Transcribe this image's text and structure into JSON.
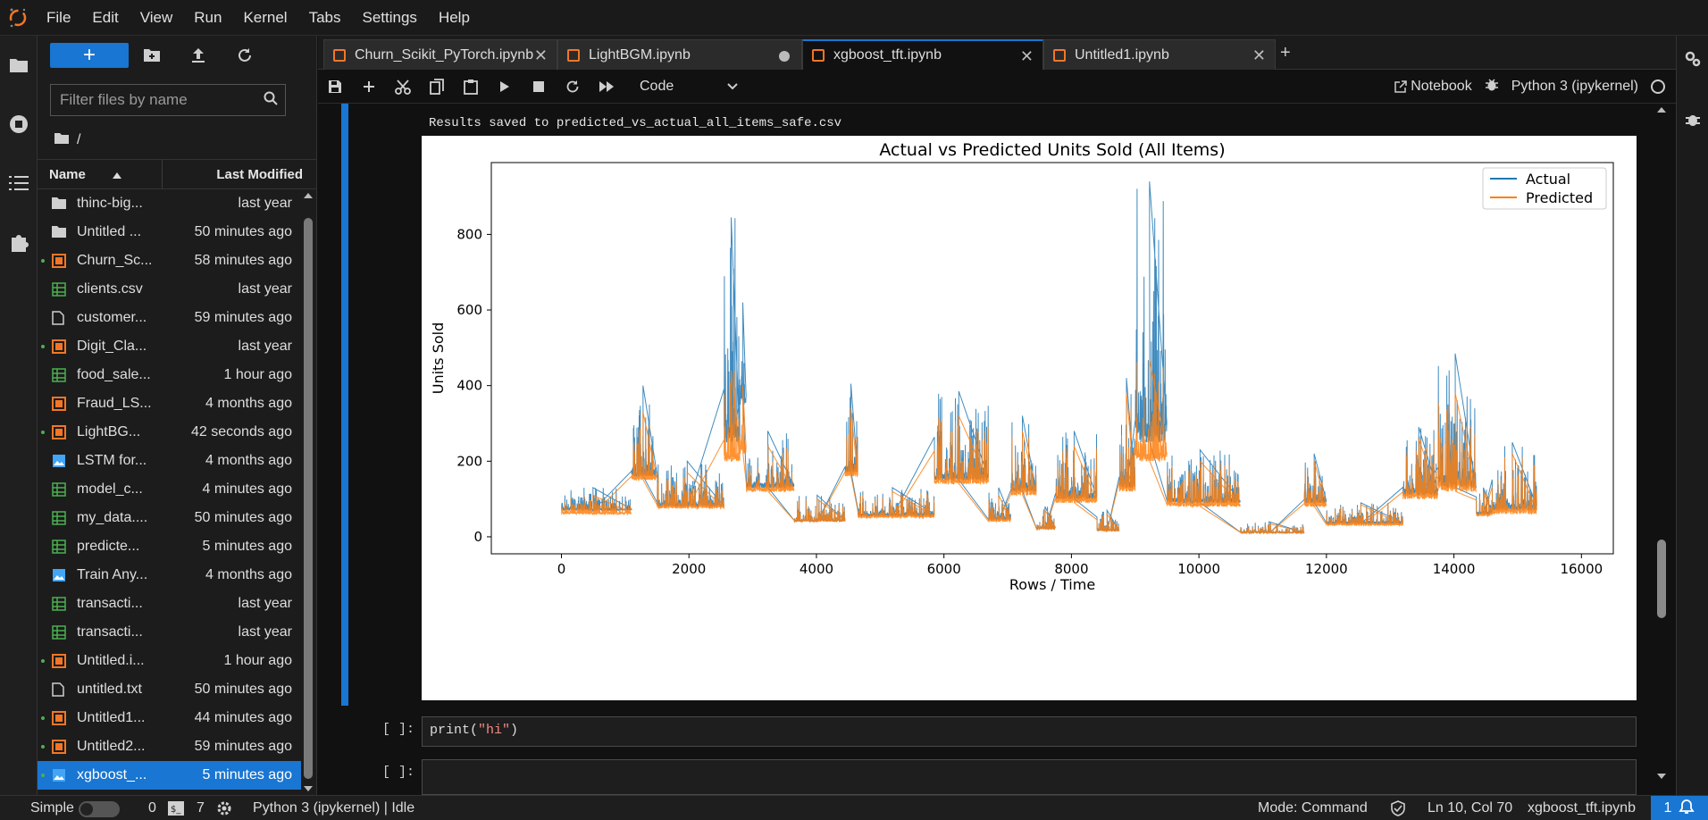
{
  "menubar": {
    "items": [
      "File",
      "Edit",
      "View",
      "Run",
      "Kernel",
      "Tabs",
      "Settings",
      "Help"
    ]
  },
  "filebrowser": {
    "new_label": "+",
    "filter_placeholder": "Filter files by name",
    "breadcrumb": "/",
    "header_name": "Name",
    "header_modified": "Last Modified",
    "files": [
      {
        "name": "thinc-big...",
        "modified": "last year",
        "type": "folder",
        "running": false
      },
      {
        "name": "Untitled ...",
        "modified": "50 minutes ago",
        "type": "folder",
        "running": false
      },
      {
        "name": "Churn_Sc...",
        "modified": "58 minutes ago",
        "type": "notebook",
        "running": true
      },
      {
        "name": "clients.csv",
        "modified": "last year",
        "type": "csv",
        "running": false
      },
      {
        "name": "customer...",
        "modified": "59 minutes ago",
        "type": "file",
        "running": false
      },
      {
        "name": "Digit_Cla...",
        "modified": "last year",
        "type": "notebook",
        "running": true
      },
      {
        "name": "food_sale...",
        "modified": "1 hour ago",
        "type": "csv",
        "running": false
      },
      {
        "name": "Fraud_LS...",
        "modified": "4 months ago",
        "type": "notebook",
        "running": false
      },
      {
        "name": "LightBG...",
        "modified": "42 seconds ago",
        "type": "notebook",
        "running": true
      },
      {
        "name": "LSTM for...",
        "modified": "4 months ago",
        "type": "image",
        "running": false
      },
      {
        "name": "model_c...",
        "modified": "4 minutes ago",
        "type": "csv",
        "running": false
      },
      {
        "name": "my_data....",
        "modified": "50 minutes ago",
        "type": "csv",
        "running": false
      },
      {
        "name": "predicte...",
        "modified": "5 minutes ago",
        "type": "csv",
        "running": false
      },
      {
        "name": "Train Any...",
        "modified": "4 months ago",
        "type": "image",
        "running": false
      },
      {
        "name": "transacti...",
        "modified": "last year",
        "type": "csv",
        "running": false
      },
      {
        "name": "transacti...",
        "modified": "last year",
        "type": "csv",
        "running": false
      },
      {
        "name": "Untitled.i...",
        "modified": "1 hour ago",
        "type": "notebook",
        "running": true
      },
      {
        "name": "untitled.txt",
        "modified": "50 minutes ago",
        "type": "file",
        "running": false
      },
      {
        "name": "Untitled1...",
        "modified": "44 minutes ago",
        "type": "notebook",
        "running": true
      },
      {
        "name": "Untitled2...",
        "modified": "59 minutes ago",
        "type": "notebook",
        "running": true
      },
      {
        "name": "xgboost_...",
        "modified": "5 minutes ago",
        "type": "image",
        "running": true,
        "selected": true
      }
    ]
  },
  "tabs": [
    {
      "label": "Churn_Scikit_PyTorch.ipynb",
      "state": "close"
    },
    {
      "label": "LightBGM.ipynb",
      "state": "dirty"
    },
    {
      "label": "xgboost_tft.ipynb",
      "state": "close",
      "active": true
    },
    {
      "label": "Untitled1.ipynb",
      "state": "close"
    }
  ],
  "toolbar": {
    "cell_type": "Code",
    "notebook_label": "Notebook",
    "kernel_label": "Python 3 (ipykernel)"
  },
  "notebook": {
    "output_text": "Results saved to predicted_vs_actual_all_items_safe.csv",
    "cell2_prompt": "[ ]:",
    "cell2_code_fn": "print(",
    "cell2_code_str": "\"hi\"",
    "cell2_code_end": ")",
    "cell3_prompt": "[ ]:"
  },
  "chart_data": {
    "type": "line",
    "title": "Actual vs Predicted Units Sold (All Items)",
    "xlabel": "Rows / Time",
    "ylabel": "Units Sold",
    "xlim": [
      -1100,
      16500
    ],
    "ylim": [
      -45,
      990
    ],
    "xticks": [
      0,
      2000,
      4000,
      6000,
      8000,
      10000,
      12000,
      14000,
      16000
    ],
    "yticks": [
      0,
      200,
      400,
      600,
      800
    ],
    "legend_position": "top-right",
    "series": [
      {
        "name": "Actual",
        "color": "#1f77b4"
      },
      {
        "name": "Predicted",
        "color": "#ff7f0e"
      }
    ],
    "segments": [
      {
        "x0": 0,
        "x1": 1100,
        "actual": [
          70,
          130
        ],
        "pred": [
          60,
          110
        ]
      },
      {
        "x0": 1100,
        "x1": 1500,
        "actual": [
          160,
          400
        ],
        "pred": [
          150,
          330
        ]
      },
      {
        "x0": 1500,
        "x1": 2550,
        "actual": [
          80,
          200
        ],
        "pred": [
          75,
          170
        ]
      },
      {
        "x0": 2550,
        "x1": 2800,
        "actual": [
          250,
          845
        ],
        "pred": [
          200,
          440
        ]
      },
      {
        "x0": 2800,
        "x1": 2900,
        "actual": [
          350,
          620
        ],
        "pred": [
          220,
          400
        ]
      },
      {
        "x0": 2900,
        "x1": 3650,
        "actual": [
          130,
          280
        ],
        "pred": [
          120,
          240
        ]
      },
      {
        "x0": 3650,
        "x1": 4450,
        "actual": [
          40,
          110
        ],
        "pred": [
          40,
          100
        ]
      },
      {
        "x0": 4450,
        "x1": 4650,
        "actual": [
          170,
          405
        ],
        "pred": [
          160,
          340
        ]
      },
      {
        "x0": 4650,
        "x1": 5850,
        "actual": [
          55,
          130
        ],
        "pred": [
          50,
          120
        ]
      },
      {
        "x0": 5850,
        "x1": 6700,
        "actual": [
          150,
          385
        ],
        "pred": [
          140,
          320
        ]
      },
      {
        "x0": 6700,
        "x1": 7050,
        "actual": [
          45,
          130
        ],
        "pred": [
          40,
          110
        ]
      },
      {
        "x0": 7050,
        "x1": 7450,
        "actual": [
          120,
          320
        ],
        "pred": [
          110,
          280
        ]
      },
      {
        "x0": 7450,
        "x1": 7750,
        "actual": [
          20,
          80
        ],
        "pred": [
          20,
          70
        ]
      },
      {
        "x0": 7750,
        "x1": 8400,
        "actual": [
          100,
          280
        ],
        "pred": [
          90,
          240
        ]
      },
      {
        "x0": 8400,
        "x1": 8750,
        "actual": [
          15,
          70
        ],
        "pred": [
          15,
          60
        ]
      },
      {
        "x0": 8750,
        "x1": 9000,
        "actual": [
          130,
          420
        ],
        "pred": [
          120,
          380
        ]
      },
      {
        "x0": 9000,
        "x1": 9500,
        "actual": [
          250,
          940
        ],
        "pred": [
          200,
          470
        ]
      },
      {
        "x0": 9500,
        "x1": 10650,
        "actual": [
          90,
          230
        ],
        "pred": [
          80,
          200
        ]
      },
      {
        "x0": 10650,
        "x1": 11650,
        "actual": [
          10,
          40
        ],
        "pred": [
          10,
          35
        ]
      },
      {
        "x0": 11650,
        "x1": 12000,
        "actual": [
          90,
          220
        ],
        "pred": [
          80,
          200
        ]
      },
      {
        "x0": 12000,
        "x1": 13200,
        "actual": [
          35,
          90
        ],
        "pred": [
          30,
          85
        ]
      },
      {
        "x0": 13200,
        "x1": 13750,
        "actual": [
          110,
          290
        ],
        "pred": [
          100,
          260
        ]
      },
      {
        "x0": 13750,
        "x1": 14350,
        "actual": [
          130,
          485
        ],
        "pred": [
          120,
          380
        ]
      },
      {
        "x0": 14350,
        "x1": 14600,
        "actual": [
          60,
          130
        ],
        "pred": [
          55,
          120
        ]
      },
      {
        "x0": 14600,
        "x1": 15300,
        "actual": [
          70,
          250
        ],
        "pred": [
          60,
          220
        ]
      }
    ]
  },
  "statusbar": {
    "mode_simple": "Simple",
    "count0": "0",
    "count7": "7",
    "kernel_status": "Python 3 (ipykernel) | Idle",
    "mode": "Mode: Command",
    "cursor": "Ln 10, Col 70",
    "filename": "xgboost_tft.ipynb",
    "notifications": "1"
  }
}
